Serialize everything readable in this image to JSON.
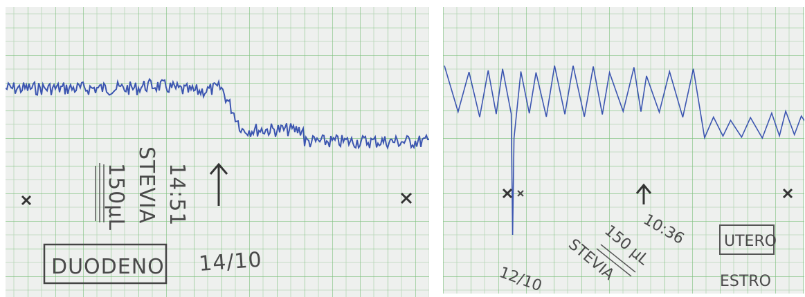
{
  "left_panel": {
    "label_box": "DUODENO",
    "date": "14/10",
    "time": "14:51",
    "substance": "STEVIA",
    "volume": "150µL"
  },
  "right_panel": {
    "date": "12/10",
    "substance": "STEVIA",
    "volume": "150 µL",
    "time": "10:36",
    "label_box": "UTERO",
    "note": "ESTRO"
  }
}
